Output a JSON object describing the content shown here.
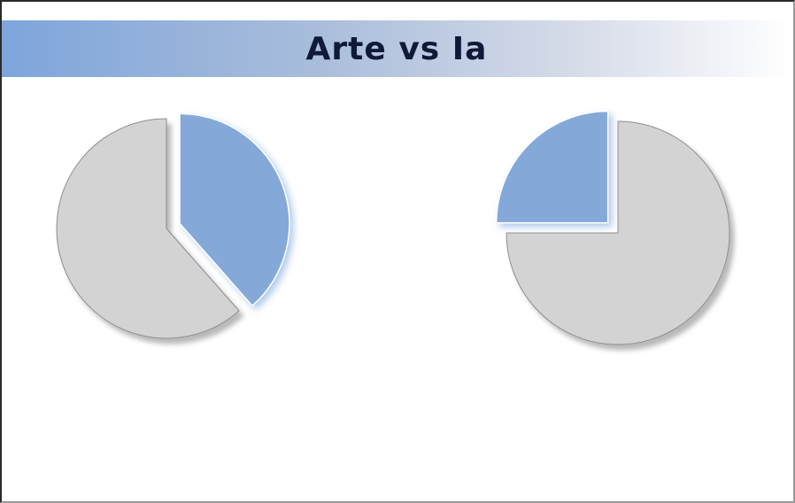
{
  "title": "Arte vs Ia",
  "colors": {
    "highlight": "#84a9d8",
    "rest": "#d3d3d3",
    "title_text": "#0e1a38"
  },
  "chart_data": [
    {
      "type": "pie",
      "start_angle_deg": 0,
      "direction": "clockwise",
      "exploded": "highlight",
      "slices": [
        {
          "key": "highlight",
          "value": 0.385,
          "color": "#84a9d8"
        },
        {
          "key": "rest",
          "value": 0.615,
          "color": "#d3d3d3"
        }
      ]
    },
    {
      "type": "pie",
      "start_angle_deg": 0,
      "direction": "counterclockwise",
      "exploded": "highlight",
      "slices": [
        {
          "key": "highlight",
          "value": 0.25,
          "color": "#84a9d8"
        },
        {
          "key": "rest",
          "value": 0.75,
          "color": "#d3d3d3"
        }
      ]
    }
  ]
}
